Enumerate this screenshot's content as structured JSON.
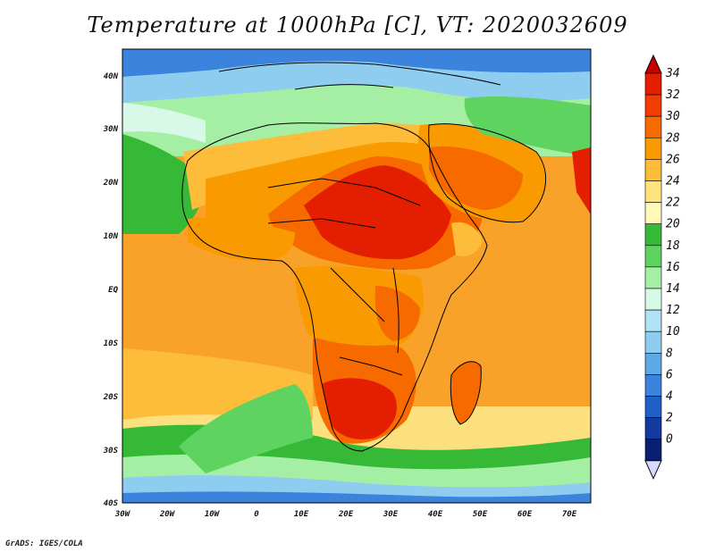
{
  "title": "Temperature at 1000hPa [C], VT: 2020032609",
  "credit": "GrADS: IGES/COLA",
  "map": {
    "lon_ticks": [
      "30W",
      "20W",
      "10W",
      "0",
      "10E",
      "20E",
      "30E",
      "40E",
      "50E",
      "60E",
      "70E"
    ],
    "lat_ticks": [
      "40N",
      "30N",
      "20N",
      "10N",
      "EQ",
      "10S",
      "20S",
      "30S",
      "40S"
    ]
  },
  "colorbar": {
    "labels": [
      "34",
      "32",
      "30",
      "28",
      "26",
      "24",
      "22",
      "20",
      "18",
      "16",
      "14",
      "12",
      "10",
      "8",
      "6",
      "4",
      "2",
      "0"
    ],
    "colors": [
      "#e41e00",
      "#f23c00",
      "#f66a00",
      "#f99a00",
      "#fdbd3a",
      "#fee47a",
      "#fff8b8",
      "#36b936",
      "#5fd35f",
      "#a5efa5",
      "#d8f8e8",
      "#b2e2f5",
      "#8ecdf0",
      "#5fa8e6",
      "#3b83dc",
      "#205fc8",
      "#133a9e",
      "#0a1f70"
    ],
    "low_color": "#d8d8ff",
    "high_color": "#c80000"
  }
}
